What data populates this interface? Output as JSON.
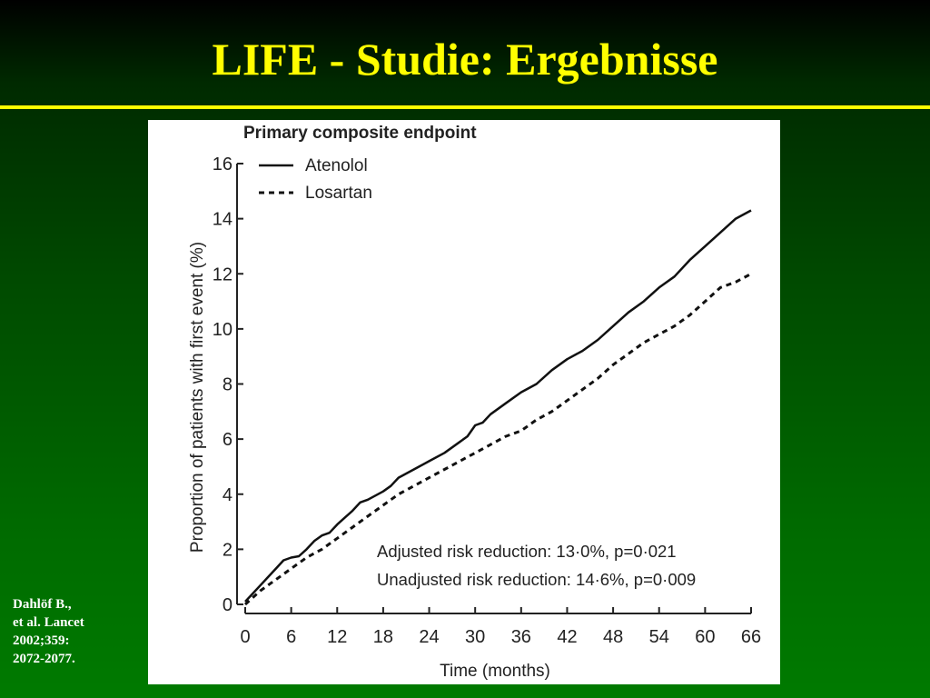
{
  "slide": {
    "title": "LIFE - Studie: Ergebnisse",
    "citation": [
      "Dahlöf B.,",
      "et al. Lancet",
      "2002;359:",
      "2072-2077."
    ],
    "colors": {
      "title": "#ffff00",
      "rule": "#ffff00",
      "citation": "#ffffff"
    }
  },
  "chart_data": {
    "type": "line",
    "title": "Primary composite endpoint",
    "xlabel": "Time (months)",
    "ylabel": "Proportion of patients with first event (%)",
    "xlim": [
      0,
      66
    ],
    "ylim": [
      0,
      16
    ],
    "xticks": [
      0,
      6,
      12,
      18,
      24,
      30,
      36,
      42,
      48,
      54,
      60,
      66
    ],
    "yticks": [
      0,
      2,
      4,
      6,
      8,
      10,
      12,
      14,
      16
    ],
    "grid": false,
    "legend": "top-left",
    "series": [
      {
        "name": "Atenolol",
        "style": "solid",
        "color": "#111111",
        "x": [
          0,
          2,
          4,
          5,
          6,
          7,
          8,
          9,
          10,
          11,
          12,
          14,
          15,
          16,
          18,
          19,
          20,
          22,
          24,
          26,
          28,
          29,
          30,
          31,
          32,
          34,
          36,
          38,
          40,
          42,
          44,
          46,
          48,
          50,
          52,
          54,
          56,
          58,
          60,
          62,
          64,
          66
        ],
        "values": [
          0.1,
          0.7,
          1.3,
          1.6,
          1.7,
          1.75,
          2.0,
          2.3,
          2.5,
          2.6,
          2.9,
          3.4,
          3.7,
          3.8,
          4.1,
          4.3,
          4.6,
          4.9,
          5.2,
          5.5,
          5.9,
          6.1,
          6.5,
          6.6,
          6.9,
          7.3,
          7.7,
          8.0,
          8.5,
          8.9,
          9.2,
          9.6,
          10.1,
          10.6,
          11.0,
          11.5,
          11.9,
          12.5,
          13.0,
          13.5,
          14.0,
          14.3
        ]
      },
      {
        "name": "Losartan",
        "style": "dashed",
        "color": "#111111",
        "x": [
          0,
          2,
          4,
          6,
          8,
          10,
          12,
          14,
          16,
          18,
          20,
          22,
          24,
          26,
          28,
          30,
          32,
          34,
          36,
          38,
          40,
          42,
          44,
          46,
          48,
          50,
          52,
          54,
          56,
          58,
          60,
          62,
          64,
          66
        ],
        "values": [
          0.0,
          0.5,
          0.9,
          1.3,
          1.7,
          2.0,
          2.4,
          2.8,
          3.2,
          3.6,
          4.0,
          4.3,
          4.6,
          4.9,
          5.2,
          5.5,
          5.8,
          6.1,
          6.3,
          6.7,
          7.0,
          7.4,
          7.8,
          8.2,
          8.7,
          9.1,
          9.5,
          9.8,
          10.1,
          10.5,
          11.0,
          11.5,
          11.7,
          12.0
        ]
      }
    ],
    "annotations": [
      "Adjusted risk reduction: 13·0%, p=0·021",
      "Unadjusted risk reduction: 14·6%, p=0·009"
    ],
    "tick_label_decimal": "·"
  }
}
